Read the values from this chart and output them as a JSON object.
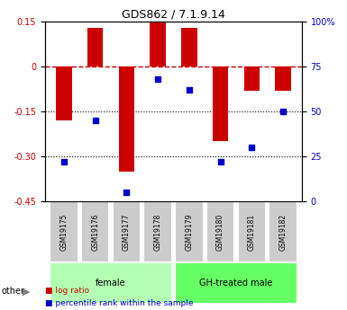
{
  "title": "GDS862 / 7.1.9.14",
  "samples": [
    "GSM19175",
    "GSM19176",
    "GSM19177",
    "GSM19178",
    "GSM19179",
    "GSM19180",
    "GSM19181",
    "GSM19182"
  ],
  "log_ratio": [
    -0.18,
    0.13,
    -0.35,
    0.15,
    0.13,
    -0.25,
    -0.08,
    -0.08
  ],
  "percentile_rank": [
    22,
    45,
    5,
    68,
    62,
    22,
    30,
    50
  ],
  "bar_color": "#cc0000",
  "dot_color": "#0000cc",
  "ylim_left": [
    -0.45,
    0.15
  ],
  "ylim_right": [
    0,
    100
  ],
  "yticks_left": [
    0.15,
    0,
    -0.15,
    -0.3,
    -0.45
  ],
  "yticks_right": [
    100,
    75,
    50,
    25,
    0
  ],
  "ytick_labels_left": [
    "0.15",
    "0",
    "-0.15",
    "-0.30",
    "-0.45"
  ],
  "ytick_labels_right": [
    "100%",
    "75",
    "50",
    "25",
    "0"
  ],
  "hlines_dotted": [
    0.0,
    -0.15,
    -0.3
  ],
  "hline_dashed": 0.0,
  "groups": [
    {
      "label": "female",
      "start": 0,
      "end": 3,
      "color": "#b3ffb3"
    },
    {
      "label": "GH-treated male",
      "start": 4,
      "end": 7,
      "color": "#66ff66"
    }
  ],
  "group_box_color": "#cccccc",
  "other_label": "other",
  "legend_items": [
    {
      "label": "log ratio",
      "color": "#cc0000",
      "marker": "s"
    },
    {
      "label": "percentile rank within the sample",
      "color": "#0000cc",
      "marker": "s"
    }
  ],
  "bar_width": 0.5
}
